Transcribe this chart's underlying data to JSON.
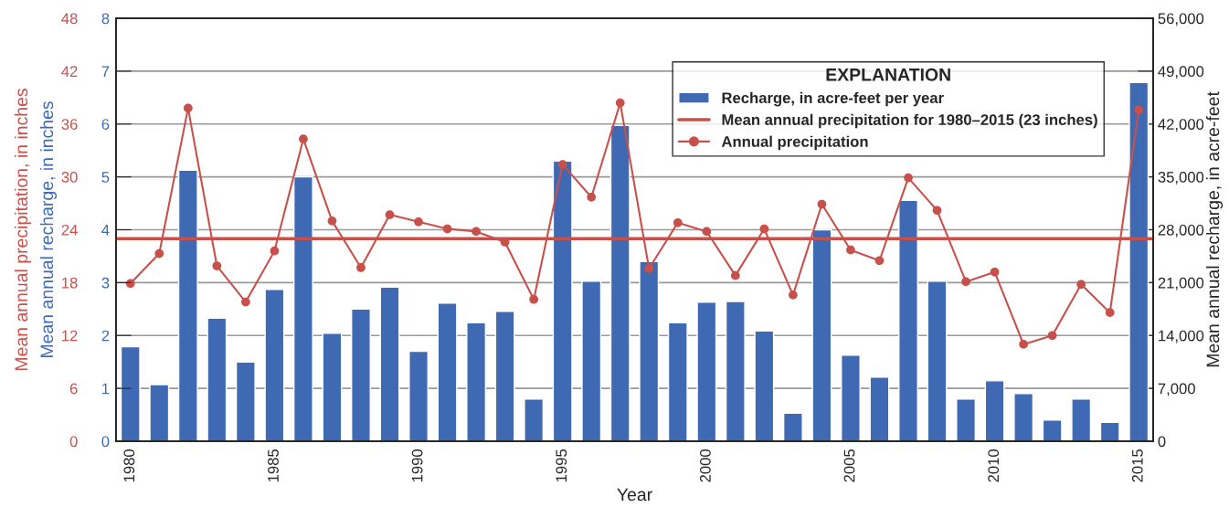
{
  "chart_data": {
    "type": "bar",
    "xlabel": "Year",
    "ylabel": "Mean annual precipitation, in inches",
    "y3label": "Mean annual recharge, in inches",
    "y2label": "Mean annual recharge, in acre-feet",
    "legend_title": "EXPLANATION",
    "categories": [
      "1980",
      null,
      null,
      null,
      null,
      "1985",
      null,
      null,
      null,
      null,
      "1990",
      null,
      null,
      null,
      null,
      "1995",
      null,
      null,
      null,
      null,
      "2000",
      null,
      null,
      null,
      null,
      "2005",
      null,
      null,
      null,
      null,
      "2010",
      null,
      null,
      null,
      null,
      "2015"
    ],
    "series": [
      {
        "name": "Recharge, in acre-feet per year",
        "axis": "y2",
        "color": "#3f69b3",
        "values": [
          12500,
          7500,
          35900,
          16300,
          10500,
          20100,
          35000,
          14300,
          17500,
          20400,
          11900,
          18300,
          15700,
          17200,
          5600,
          37100,
          21200,
          41800,
          23800,
          15700,
          18400,
          18500,
          14600,
          3700,
          28000,
          11400,
          8500,
          31900,
          21200,
          5600,
          8000,
          6300,
          2800,
          5600,
          2500,
          47500
        ]
      },
      {
        "name": "Annual precipitation",
        "type": "line",
        "axis": "y",
        "color": "#c8504b",
        "marker": "circle",
        "values": [
          17.9,
          21.3,
          37.8,
          19.9,
          15.8,
          21.6,
          34.3,
          25.0,
          19.7,
          25.7,
          24.9,
          24.1,
          23.8,
          22.6,
          16.1,
          31.4,
          27.7,
          38.4,
          19.6,
          24.8,
          23.8,
          18.8,
          24.1,
          16.6,
          26.9,
          21.7,
          20.5,
          29.9,
          26.2,
          18.1,
          19.2,
          11.0,
          12.0,
          17.8,
          14.6,
          37.6
        ]
      }
    ],
    "ref_lines": [
      {
        "axis": "y",
        "value": 23,
        "label": "Mean annual precipitation for 1980–2015 (23 inches)",
        "color": "#c8504b",
        "line_style": "solid"
      }
    ],
    "ylim": [
      0,
      48
    ],
    "yticks": [
      0,
      6,
      12,
      18,
      24,
      30,
      36,
      42,
      48
    ],
    "y3lim": [
      0,
      8
    ],
    "y3ticks": [
      0,
      1,
      2,
      3,
      4,
      5,
      6,
      7,
      8
    ],
    "y2lim": [
      0,
      56000
    ],
    "y2ticks": [
      {
        "value": 0,
        "label": "0"
      },
      {
        "value": 7000,
        "label": "7,000"
      },
      {
        "value": 14000,
        "label": "14,000"
      },
      {
        "value": 21000,
        "label": "21,000"
      },
      {
        "value": 28000,
        "label": "28,000"
      },
      {
        "value": 35000,
        "label": "35,000"
      },
      {
        "value": 42000,
        "label": "42,000"
      },
      {
        "value": 49000,
        "label": "49,000"
      },
      {
        "value": 56000,
        "label": "56,000"
      }
    ],
    "grid": "y",
    "legend": "top right"
  }
}
